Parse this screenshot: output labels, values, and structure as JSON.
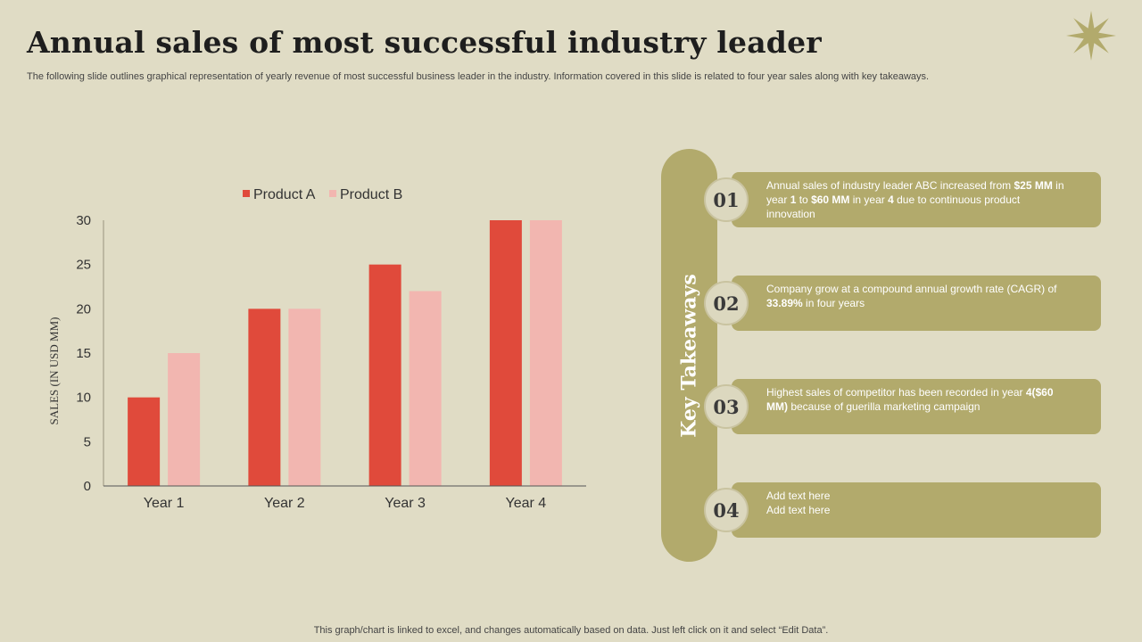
{
  "slide": {
    "title": "Annual sales of most successful industry leader",
    "subtitle": "The following slide outlines graphical representation of yearly revenue of most successful business leader in the industry. Information covered in this slide is related to four year sales along with key takeaways.",
    "footer": "This graph/chart is linked to excel, and changes automatically based on data. Just left click on it and select “Edit Data”."
  },
  "chart_data": {
    "type": "bar",
    "categories": [
      "Year 1",
      "Year 2",
      "Year 3",
      "Year 4"
    ],
    "series": [
      {
        "name": "Product A",
        "values": [
          10,
          20,
          25,
          30
        ],
        "color": "#e04a3b"
      },
      {
        "name": "Product B",
        "values": [
          15,
          20,
          22,
          30
        ],
        "color": "#f2b6b0"
      }
    ],
    "ylabel": "SALES (IN USD MM)",
    "ylim": [
      0,
      30
    ],
    "yticks": [
      0,
      5,
      10,
      15,
      20,
      25,
      30
    ],
    "grid": false,
    "legend_position": "top"
  },
  "takeaways": {
    "heading": "Key Takeaways",
    "items": [
      {
        "num": "01",
        "parts": [
          {
            "t": "Annual sales of industry leader ABC increased from "
          },
          {
            "t": "$25 MM",
            "b": true
          },
          {
            "t": " in year "
          },
          {
            "t": "1",
            "b": true
          },
          {
            "t": " to "
          },
          {
            "t": "$60 MM",
            "b": true
          },
          {
            "t": " in year "
          },
          {
            "t": "4",
            "b": true
          },
          {
            "t": " due to continuous product innovation"
          }
        ]
      },
      {
        "num": "02",
        "parts": [
          {
            "t": "Company grow at a compound annual growth rate (CAGR) of "
          },
          {
            "t": "33.89%",
            "b": true
          },
          {
            "t": " in four years"
          }
        ]
      },
      {
        "num": "03",
        "parts": [
          {
            "t": "Highest sales of competitor has been recorded in year "
          },
          {
            "t": "4($60 MM)",
            "b": true
          },
          {
            "t": " because of guerilla marketing campaign"
          }
        ]
      },
      {
        "num": "04",
        "parts": [
          {
            "t": "Add text here"
          },
          {
            "t": "\n"
          },
          {
            "t": "Add text here"
          }
        ]
      }
    ]
  },
  "colors": {
    "accent": "#b2aa6c",
    "background": "#e0dcc5"
  },
  "icons": {
    "decoration": "star-burst-icon"
  }
}
